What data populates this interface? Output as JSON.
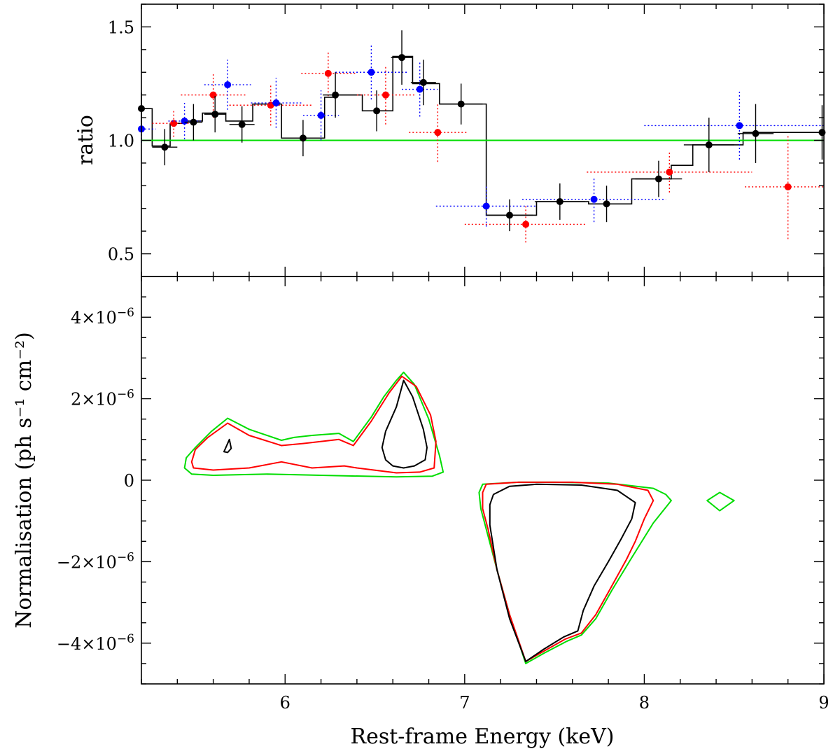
{
  "chart_data": [
    {
      "type": "scatter",
      "panel": "top",
      "xlabel": "",
      "ylabel": "ratio",
      "xlim": [
        5.2,
        9.0
      ],
      "ylim": [
        0.4,
        1.6
      ],
      "y_ticks": [
        0.5,
        1.0,
        1.5
      ],
      "y_tick_labels": [
        "0.5",
        "1.0",
        "1.5"
      ],
      "reference_line": {
        "y": 1.0,
        "color": "#00dd00"
      },
      "step_model": {
        "color": "#000000",
        "edges": [
          5.2,
          5.26,
          5.36,
          5.44,
          5.54,
          5.67,
          5.82,
          5.98,
          6.22,
          6.29,
          6.43,
          6.6,
          6.71,
          6.86,
          7.12,
          7.4,
          7.69,
          7.8,
          7.93,
          8.15,
          8.27,
          8.55,
          8.7,
          9.0
        ],
        "values": [
          1.14,
          0.975,
          1.075,
          1.085,
          1.12,
          1.085,
          1.16,
          1.01,
          1.19,
          1.2,
          1.13,
          1.37,
          1.25,
          1.16,
          0.67,
          0.73,
          0.72,
          0.72,
          0.83,
          0.89,
          0.98,
          1.035,
          1.035
        ]
      },
      "series": [
        {
          "name": "black",
          "color": "#000000",
          "linestyle": "solid",
          "points": [
            {
              "x": 5.2,
              "y": 1.14,
              "xerr": 0.05,
              "yerr": 0.07
            },
            {
              "x": 5.33,
              "y": 0.97,
              "xerr": 0.07,
              "yerr": 0.08
            },
            {
              "x": 5.49,
              "y": 1.08,
              "xerr": 0.05,
              "yerr": 0.08
            },
            {
              "x": 5.61,
              "y": 1.115,
              "xerr": 0.06,
              "yerr": 0.08
            },
            {
              "x": 5.76,
              "y": 1.07,
              "xerr": 0.07,
              "yerr": 0.08
            },
            {
              "x": 6.1,
              "y": 1.01,
              "xerr": 0.12,
              "yerr": 0.08
            },
            {
              "x": 6.28,
              "y": 1.2,
              "xerr": 0.07,
              "yerr": 0.1
            },
            {
              "x": 6.51,
              "y": 1.13,
              "xerr": 0.08,
              "yerr": 0.09
            },
            {
              "x": 6.65,
              "y": 1.365,
              "xerr": 0.06,
              "yerr": 0.12
            },
            {
              "x": 6.77,
              "y": 1.255,
              "xerr": 0.07,
              "yerr": 0.1
            },
            {
              "x": 6.98,
              "y": 1.16,
              "xerr": 0.12,
              "yerr": 0.09
            },
            {
              "x": 7.25,
              "y": 0.67,
              "xerr": 0.13,
              "yerr": 0.07
            },
            {
              "x": 7.53,
              "y": 0.73,
              "xerr": 0.14,
              "yerr": 0.08
            },
            {
              "x": 7.79,
              "y": 0.72,
              "xerr": 0.06,
              "yerr": 0.08
            },
            {
              "x": 8.08,
              "y": 0.83,
              "xerr": 0.13,
              "yerr": 0.08
            },
            {
              "x": 8.36,
              "y": 0.98,
              "xerr": 0.14,
              "yerr": 0.12
            },
            {
              "x": 8.62,
              "y": 1.03,
              "xerr": 0.1,
              "yerr": 0.13
            },
            {
              "x": 8.99,
              "y": 1.035,
              "xerr": 0.2,
              "yerr": 0.12
            }
          ]
        },
        {
          "name": "red",
          "color": "#ff0000",
          "linestyle": "dotted",
          "points": [
            {
              "x": 5.38,
              "y": 1.075,
              "xerr": 0.12,
              "yerr": 0.06
            },
            {
              "x": 5.6,
              "y": 1.2,
              "xerr": 0.18,
              "yerr": 0.1
            },
            {
              "x": 5.92,
              "y": 1.155,
              "xerr": 0.23,
              "yerr": 0.09
            },
            {
              "x": 6.24,
              "y": 1.295,
              "xerr": 0.15,
              "yerr": 0.1
            },
            {
              "x": 6.56,
              "y": 1.2,
              "xerr": 0.16,
              "yerr": 0.13
            },
            {
              "x": 6.85,
              "y": 1.035,
              "xerr": 0.16,
              "yerr": 0.13
            },
            {
              "x": 7.34,
              "y": 0.63,
              "xerr": 0.34,
              "yerr": 0.08
            },
            {
              "x": 8.14,
              "y": 0.86,
              "xerr": 0.46,
              "yerr": 0.09
            },
            {
              "x": 8.8,
              "y": 0.795,
              "xerr": 0.24,
              "yerr": 0.23
            }
          ]
        },
        {
          "name": "blue",
          "color": "#0000ff",
          "linestyle": "dotted",
          "points": [
            {
              "x": 5.2,
              "y": 1.05,
              "xerr": 0.08,
              "yerr": 0.06
            },
            {
              "x": 5.44,
              "y": 1.085,
              "xerr": 0.09,
              "yerr": 0.08
            },
            {
              "x": 5.68,
              "y": 1.245,
              "xerr": 0.13,
              "yerr": 0.11
            },
            {
              "x": 5.95,
              "y": 1.165,
              "xerr": 0.14,
              "yerr": 0.11
            },
            {
              "x": 6.2,
              "y": 1.11,
              "xerr": 0.1,
              "yerr": 0.11
            },
            {
              "x": 6.48,
              "y": 1.3,
              "xerr": 0.2,
              "yerr": 0.12
            },
            {
              "x": 6.75,
              "y": 1.225,
              "xerr": 0.1,
              "yerr": 0.12
            },
            {
              "x": 7.12,
              "y": 0.71,
              "xerr": 0.28,
              "yerr": 0.09
            },
            {
              "x": 7.72,
              "y": 0.74,
              "xerr": 0.4,
              "yerr": 0.1
            },
            {
              "x": 8.53,
              "y": 1.065,
              "xerr": 0.53,
              "yerr": 0.15
            }
          ]
        }
      ]
    },
    {
      "type": "contour",
      "panel": "bottom",
      "xlabel": "Rest-frame Energy (keV)",
      "ylabel": "Normalisation (ph s⁻¹ cm⁻²)",
      "xlim": [
        5.2,
        9.0
      ],
      "ylim": [
        -5e-06,
        5e-06
      ],
      "x_ticks": [
        6,
        7,
        8,
        9
      ],
      "x_tick_labels": [
        "6",
        "7",
        "8",
        "9"
      ],
      "y_ticks": [
        -4e-06,
        -2e-06,
        0,
        2e-06,
        4e-06
      ],
      "y_tick_mantissas": [
        "−4",
        "−2",
        "0",
        "2",
        "4"
      ],
      "y_tick_multiplier": "×10",
      "y_tick_exponent": "−6",
      "contours": [
        {
          "level": "outer",
          "color": "#00dd00",
          "path": [
            [
              5.44,
              0.3
            ],
            [
              5.45,
              0.55
            ],
            [
              5.5,
              0.8
            ],
            [
              5.59,
              1.2
            ],
            [
              5.68,
              1.52
            ],
            [
              5.8,
              1.25
            ],
            [
              5.98,
              0.98
            ],
            [
              6.05,
              1.05
            ],
            [
              6.15,
              1.1
            ],
            [
              6.3,
              1.15
            ],
            [
              6.38,
              0.95
            ],
            [
              6.48,
              1.55
            ],
            [
              6.55,
              2.05
            ],
            [
              6.62,
              2.45
            ],
            [
              6.66,
              2.65
            ],
            [
              6.72,
              2.35
            ],
            [
              6.8,
              1.5
            ],
            [
              6.86,
              0.6
            ],
            [
              6.88,
              0.2
            ],
            [
              6.82,
              0.1
            ],
            [
              6.62,
              0.08
            ],
            [
              6.2,
              0.12
            ],
            [
              5.9,
              0.15
            ],
            [
              5.6,
              0.12
            ],
            [
              5.48,
              0.15
            ],
            [
              5.44,
              0.3
            ]
          ]
        },
        {
          "level": "outer",
          "color": "#00dd00",
          "path": [
            [
              7.08,
              -0.3
            ],
            [
              7.1,
              -0.1
            ],
            [
              7.3,
              -0.05
            ],
            [
              7.5,
              -0.05
            ],
            [
              7.8,
              -0.07
            ],
            [
              8.05,
              -0.2
            ],
            [
              8.12,
              -0.35
            ],
            [
              8.15,
              -0.5
            ],
            [
              8.05,
              -1.05
            ],
            [
              7.93,
              -1.9
            ],
            [
              7.82,
              -2.7
            ],
            [
              7.73,
              -3.4
            ],
            [
              7.65,
              -3.8
            ],
            [
              7.57,
              -3.95
            ],
            [
              7.44,
              -4.25
            ],
            [
              7.34,
              -4.5
            ],
            [
              7.25,
              -3.3
            ],
            [
              7.18,
              -2.2
            ],
            [
              7.12,
              -1.2
            ],
            [
              7.09,
              -0.7
            ],
            [
              7.08,
              -0.3
            ]
          ]
        },
        {
          "level": "outer",
          "color": "#00dd00",
          "path": [
            [
              8.35,
              -0.5
            ],
            [
              8.42,
              -0.3
            ],
            [
              8.5,
              -0.5
            ],
            [
              8.42,
              -0.75
            ],
            [
              8.35,
              -0.5
            ]
          ]
        },
        {
          "level": "middle",
          "color": "#ff0000",
          "path": [
            [
              5.48,
              0.45
            ],
            [
              5.5,
              0.75
            ],
            [
              5.57,
              1.05
            ],
            [
              5.68,
              1.4
            ],
            [
              5.8,
              1.1
            ],
            [
              5.98,
              0.85
            ],
            [
              6.1,
              0.9
            ],
            [
              6.3,
              1.0
            ],
            [
              6.38,
              0.85
            ],
            [
              6.48,
              1.45
            ],
            [
              6.58,
              2.15
            ],
            [
              6.65,
              2.55
            ],
            [
              6.73,
              2.3
            ],
            [
              6.81,
              1.6
            ],
            [
              6.84,
              0.95
            ],
            [
              6.83,
              0.3
            ],
            [
              6.75,
              0.2
            ],
            [
              6.62,
              0.18
            ],
            [
              6.4,
              0.3
            ],
            [
              6.33,
              0.35
            ],
            [
              6.15,
              0.3
            ],
            [
              5.98,
              0.45
            ],
            [
              5.8,
              0.3
            ],
            [
              5.6,
              0.25
            ],
            [
              5.49,
              0.3
            ],
            [
              5.48,
              0.45
            ]
          ]
        },
        {
          "level": "middle",
          "color": "#ff0000",
          "path": [
            [
              7.1,
              -0.3
            ],
            [
              7.12,
              -0.1
            ],
            [
              7.3,
              -0.05
            ],
            [
              7.6,
              -0.05
            ],
            [
              7.85,
              -0.1
            ],
            [
              8.02,
              -0.25
            ],
            [
              8.05,
              -0.5
            ],
            [
              8.0,
              -0.95
            ],
            [
              7.95,
              -1.5
            ],
            [
              7.9,
              -1.95
            ],
            [
              7.8,
              -2.75
            ],
            [
              7.73,
              -3.3
            ],
            [
              7.65,
              -3.75
            ],
            [
              7.56,
              -3.9
            ],
            [
              7.44,
              -4.2
            ],
            [
              7.34,
              -4.45
            ],
            [
              7.25,
              -3.3
            ],
            [
              7.18,
              -2.2
            ],
            [
              7.13,
              -1.2
            ],
            [
              7.1,
              -0.7
            ],
            [
              7.1,
              -0.3
            ]
          ]
        },
        {
          "level": "inner",
          "color": "#000000",
          "path": [
            [
              5.67,
              0.8
            ],
            [
              5.69,
              1.0
            ],
            [
              5.7,
              0.78
            ],
            [
              5.68,
              0.68
            ],
            [
              5.66,
              0.7
            ],
            [
              5.67,
              0.8
            ]
          ]
        },
        {
          "level": "inner",
          "color": "#000000",
          "path": [
            [
              6.54,
              0.8
            ],
            [
              6.56,
              1.2
            ],
            [
              6.62,
              1.8
            ],
            [
              6.66,
              2.45
            ],
            [
              6.71,
              2.05
            ],
            [
              6.77,
              1.25
            ],
            [
              6.79,
              0.8
            ],
            [
              6.78,
              0.5
            ],
            [
              6.72,
              0.35
            ],
            [
              6.66,
              0.3
            ],
            [
              6.6,
              0.35
            ],
            [
              6.56,
              0.5
            ],
            [
              6.54,
              0.8
            ]
          ]
        },
        {
          "level": "inner",
          "color": "#000000",
          "path": [
            [
              7.14,
              -0.6
            ],
            [
              7.16,
              -0.35
            ],
            [
              7.25,
              -0.15
            ],
            [
              7.4,
              -0.1
            ],
            [
              7.65,
              -0.12
            ],
            [
              7.85,
              -0.25
            ],
            [
              7.95,
              -0.55
            ],
            [
              7.93,
              -0.95
            ],
            [
              7.87,
              -1.45
            ],
            [
              7.8,
              -2.0
            ],
            [
              7.72,
              -2.6
            ],
            [
              7.66,
              -3.2
            ],
            [
              7.63,
              -3.7
            ],
            [
              7.55,
              -3.85
            ],
            [
              7.44,
              -4.15
            ],
            [
              7.34,
              -4.45
            ],
            [
              7.25,
              -3.4
            ],
            [
              7.18,
              -2.2
            ],
            [
              7.14,
              -1.1
            ],
            [
              7.14,
              -0.6
            ]
          ]
        }
      ]
    }
  ]
}
